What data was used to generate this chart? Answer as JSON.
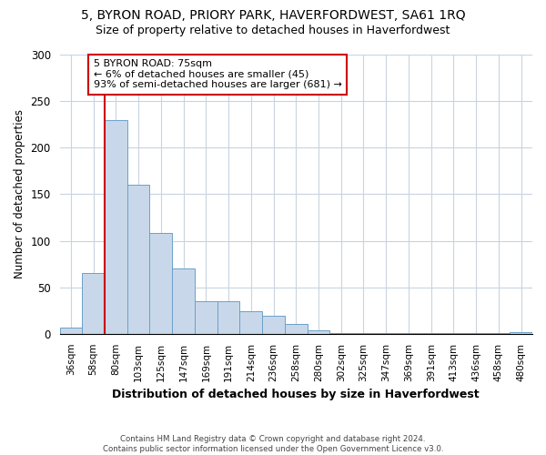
{
  "title1": "5, BYRON ROAD, PRIORY PARK, HAVERFORDWEST, SA61 1RQ",
  "title2": "Size of property relative to detached houses in Haverfordwest",
  "xlabel": "Distribution of detached houses by size in Haverfordwest",
  "ylabel": "Number of detached properties",
  "footnote": "Contains HM Land Registry data © Crown copyright and database right 2024.\nContains public sector information licensed under the Open Government Licence v3.0.",
  "categories": [
    "36sqm",
    "58sqm",
    "80sqm",
    "103sqm",
    "125sqm",
    "147sqm",
    "169sqm",
    "191sqm",
    "214sqm",
    "236sqm",
    "258sqm",
    "280sqm",
    "302sqm",
    "325sqm",
    "347sqm",
    "369sqm",
    "391sqm",
    "413sqm",
    "436sqm",
    "458sqm",
    "480sqm"
  ],
  "values": [
    7,
    65,
    230,
    160,
    108,
    70,
    35,
    35,
    24,
    19,
    11,
    4,
    1,
    1,
    1,
    1,
    1,
    1,
    1,
    1,
    2
  ],
  "bar_color": "#c8d8ea",
  "bar_edge_color": "#6ba0c8",
  "grid_color": "#c8d4e0",
  "annotation_box_color": "#cc0000",
  "annotation_line_color": "#cc0000",
  "annotation_title": "5 BYRON ROAD: 75sqm",
  "annotation_line1": "← 6% of detached houses are smaller (45)",
  "annotation_line2": "93% of semi-detached houses are larger (681) →",
  "ylim": [
    0,
    300
  ],
  "yticks": [
    0,
    50,
    100,
    150,
    200,
    250,
    300
  ],
  "background_color": "#ffffff",
  "title1_fontsize": 10,
  "title2_fontsize": 9
}
